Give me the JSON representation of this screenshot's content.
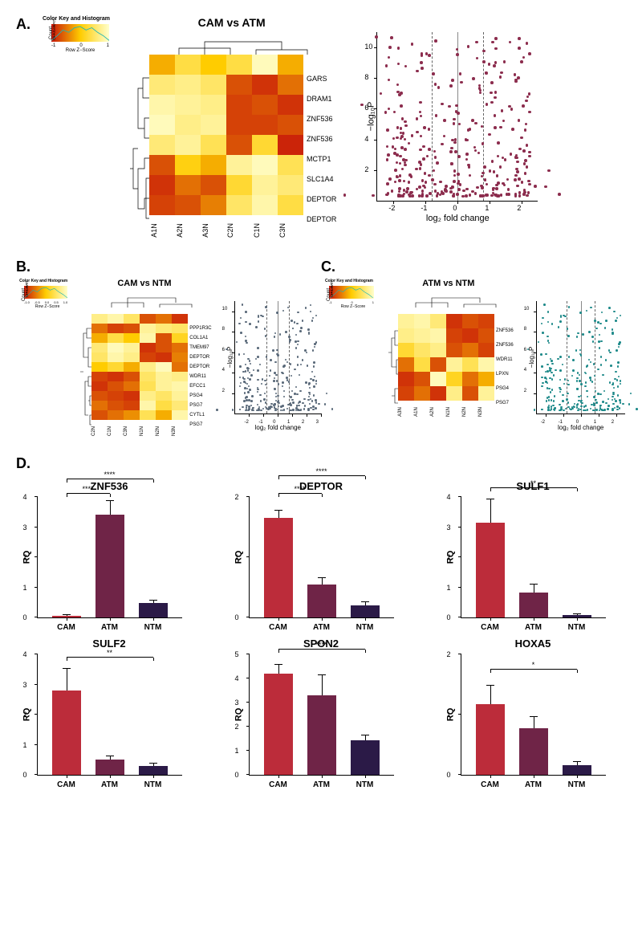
{
  "colors": {
    "bar_cam": "#bc2c3a",
    "bar_atm": "#6f2447",
    "bar_ntm": "#2b1a47",
    "volcano_a": "#8c2d4e",
    "volcano_b": "#5b6a7a",
    "volcano_c": "#1f8a8a"
  },
  "heatmap_palette": {
    "min": "#c7150a",
    "mid": "#ffcc00",
    "max": "#ffffcc"
  },
  "colorkey": {
    "title": "Color Key\nand Histogram",
    "count_label": "Count",
    "y_ticks": [
      "0",
      "1",
      "2",
      "3",
      "4",
      "5",
      "6"
    ],
    "x_ticks": [
      "-1",
      "0",
      "1"
    ],
    "x_label": "Row Z−Score"
  },
  "colorkey_small": {
    "title": "Color Key\nand Histogram",
    "count_label": "Count",
    "y_ticks": [
      "0",
      "2",
      "4"
    ],
    "x_ticks_b": [
      "-1.0",
      "-0.5",
      "0.0",
      "0.5",
      "1.0"
    ],
    "x_ticks_c": [
      "-1",
      "0",
      "1"
    ],
    "x_label": "Row Z−Score"
  },
  "panelA": {
    "label": "A.",
    "title": "CAM vs ATM",
    "rows": [
      "GARS",
      "DRAM1",
      "ZNF536",
      "ZNF536",
      "MCTP1",
      "SLC1A4",
      "DEPTOR",
      "DEPTOR"
    ],
    "cols": [
      "A1N",
      "A2N",
      "A3N",
      "C2N",
      "C1N",
      "C3N"
    ],
    "z": [
      [
        -0.2,
        0.4,
        0.0,
        0.4,
        1.1,
        -0.2
      ],
      [
        0.7,
        0.8,
        0.6,
        -0.8,
        -1.0,
        -0.6
      ],
      [
        1.0,
        0.9,
        0.8,
        -0.9,
        -0.8,
        -1.0
      ],
      [
        1.1,
        0.8,
        0.9,
        -0.9,
        -0.9,
        -0.8
      ],
      [
        0.7,
        0.9,
        0.5,
        -0.8,
        0.3,
        -1.1
      ],
      [
        -0.8,
        0.1,
        -0.2,
        0.9,
        1.1,
        0.5
      ],
      [
        -1.0,
        -0.6,
        -0.8,
        0.3,
        0.9,
        0.7
      ],
      [
        -0.9,
        -0.8,
        -0.5,
        0.6,
        1.0,
        0.4
      ]
    ],
    "volcano": {
      "ylab": "−log₁₀P",
      "xlab": "log₂ fold change",
      "xlim": [
        -2.5,
        2.5
      ],
      "ylim": [
        0,
        11
      ],
      "xticks": [
        -2,
        -1,
        0,
        1,
        2
      ],
      "yticks": [
        2,
        4,
        6,
        8,
        10
      ],
      "vlines_dashed": [
        -0.8,
        0.8
      ],
      "vlines_solid": [
        0
      ],
      "color": "#8c2d4e",
      "point_size": 3.5
    }
  },
  "panelB": {
    "label": "B.",
    "title": "CAM vs NTM",
    "rows": [
      "PPP1R3C",
      "COL1A1",
      "TMEM97",
      "DEPTOR",
      "DEPTOR",
      "WDR11",
      "EFCC1",
      "PSG4",
      "PSG7",
      "CYTL1",
      "PSG7"
    ],
    "cols": [
      "C2N",
      "C1N",
      "C3N",
      "N1N",
      "N2N",
      "N3N"
    ],
    "z": [
      [
        0.8,
        1.0,
        0.6,
        -0.8,
        -0.6,
        -1.0
      ],
      [
        -0.6,
        -0.9,
        -0.8,
        0.9,
        0.7,
        0.6
      ],
      [
        -0.2,
        0.4,
        0.0,
        1.0,
        -0.8,
        0.2
      ],
      [
        0.7,
        1.1,
        0.9,
        -1.0,
        -0.8,
        -0.6
      ],
      [
        0.6,
        1.0,
        0.8,
        -0.9,
        -1.0,
        -0.5
      ],
      [
        0.0,
        0.3,
        -0.2,
        0.8,
        1.1,
        -0.6
      ],
      [
        -0.9,
        -1.0,
        -0.8,
        0.6,
        0.9,
        0.8
      ],
      [
        -1.0,
        -0.8,
        -0.6,
        0.5,
        0.9,
        1.0
      ],
      [
        -0.8,
        -0.9,
        -1.0,
        0.8,
        0.6,
        0.9
      ],
      [
        -0.6,
        -0.8,
        -0.9,
        1.0,
        0.4,
        0.7
      ],
      [
        -0.8,
        -0.6,
        -0.4,
        0.5,
        -0.2,
        1.0
      ]
    ],
    "volcano": {
      "ylab": "−log₁₀P",
      "xlab": "log₂ fold change",
      "xlim": [
        -3,
        3
      ],
      "ylim": [
        0,
        11
      ],
      "xticks": [
        -2,
        -1,
        0,
        1,
        2,
        3
      ],
      "yticks": [
        2,
        4,
        6,
        8,
        10
      ],
      "vlines_dashed": [
        -0.8,
        0.8
      ],
      "vlines_solid": [
        0
      ],
      "color": "#5b6a7a",
      "point_size": 2.5
    }
  },
  "panelC": {
    "label": "C.",
    "title": "ATM vs NTM",
    "rows": [
      "ZNF536",
      "ZNF536",
      "WDR11",
      "LPXN",
      "PSG4",
      "PSG7"
    ],
    "cols": [
      "A3N",
      "A1N",
      "A2N",
      "N1N",
      "N2N",
      "N3N"
    ],
    "z": [
      [
        0.9,
        1.0,
        0.7,
        -1.0,
        -0.8,
        -0.9
      ],
      [
        0.8,
        0.9,
        1.0,
        -0.9,
        -1.0,
        -0.8
      ],
      [
        0.3,
        0.6,
        0.8,
        -0.8,
        -0.6,
        -0.9
      ],
      [
        -0.6,
        0.4,
        -0.8,
        0.9,
        0.5,
        1.0
      ],
      [
        -1.0,
        -0.8,
        1.1,
        0.2,
        -0.6,
        -0.2
      ],
      [
        -0.9,
        -0.6,
        -1.0,
        0.8,
        -0.8,
        0.9
      ]
    ],
    "volcano": {
      "ylab": "−log₁₀P",
      "xlab": "log₂ fold change",
      "xlim": [
        -2.5,
        2.5
      ],
      "ylim": [
        0,
        11
      ],
      "xticks": [
        -2,
        -1,
        0,
        1,
        2
      ],
      "yticks": [
        2,
        4,
        6,
        8,
        10
      ],
      "vlines_dashed": [
        -0.8,
        0.8
      ],
      "vlines_solid": [
        0
      ],
      "color": "#1f8a8a",
      "point_size": 2.5
    }
  },
  "panelD": {
    "label": "D.",
    "ylab": "RQ",
    "groups": [
      "CAM",
      "ATM",
      "NTM"
    ],
    "charts": [
      {
        "title": "ZNF536",
        "ymax": 4,
        "ytick": 1,
        "values": [
          0.05,
          3.42,
          0.47
        ],
        "err": [
          0.03,
          0.45,
          0.1
        ],
        "sig": [
          {
            "i": 0,
            "j": 1,
            "label": "****",
            "y": 4.1
          },
          {
            "i": 0,
            "j": 2,
            "label": "****",
            "y": 4.6
          }
        ]
      },
      {
        "title": "DEPTOR",
        "ymax": 2,
        "ytick": 1,
        "values": [
          1.65,
          0.55,
          0.2
        ],
        "err": [
          0.12,
          0.1,
          0.06
        ],
        "sig": [
          {
            "i": 0,
            "j": 1,
            "label": "****",
            "y": 2.05
          },
          {
            "i": 0,
            "j": 2,
            "label": "****",
            "y": 2.35
          }
        ]
      },
      {
        "title": "SULF1",
        "ymax": 4,
        "ytick": 1,
        "values": [
          3.15,
          0.82,
          0.07
        ],
        "err": [
          0.78,
          0.27,
          0.04
        ],
        "sig": [
          {
            "i": 0,
            "j": 2,
            "label": "**",
            "y": 4.3
          }
        ]
      },
      {
        "title": "SULF2",
        "ymax": 4,
        "ytick": 1,
        "values": [
          2.8,
          0.52,
          0.3
        ],
        "err": [
          0.72,
          0.1,
          0.08
        ],
        "sig": [
          {
            "i": 0,
            "j": 2,
            "label": "**",
            "y": 3.9
          }
        ]
      },
      {
        "title": "SPON2",
        "ymax": 5,
        "ytick": 1,
        "values": [
          4.2,
          3.3,
          1.45
        ],
        "err": [
          0.38,
          0.82,
          0.2
        ],
        "sig": [
          {
            "i": 0,
            "j": 2,
            "label": "****",
            "y": 5.2
          }
        ]
      },
      {
        "title": "HOXA5",
        "ymax": 2,
        "ytick": 1,
        "values": [
          1.18,
          0.78,
          0.16
        ],
        "err": [
          0.3,
          0.18,
          0.06
        ],
        "sig": [
          {
            "i": 0,
            "j": 2,
            "label": "*",
            "y": 1.75
          }
        ]
      }
    ]
  }
}
